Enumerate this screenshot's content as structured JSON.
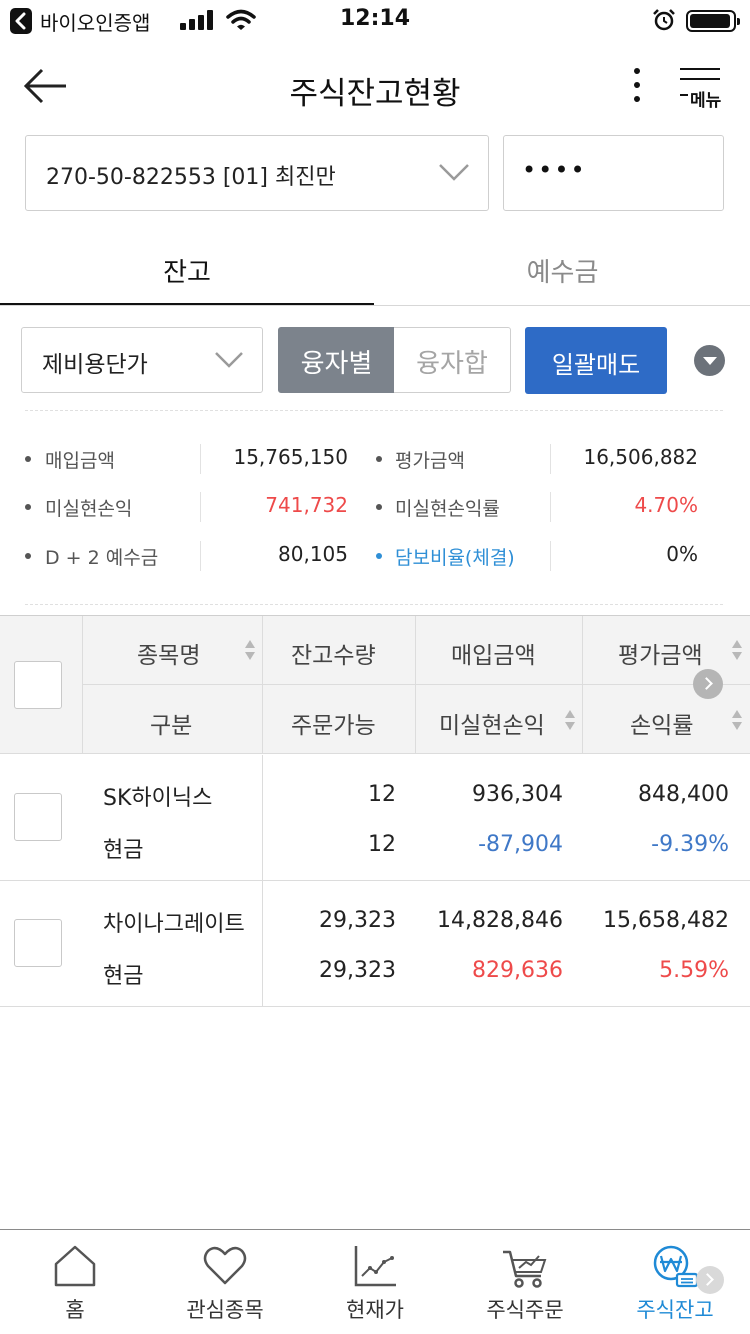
{
  "status_bar": {
    "back_app": "바이오인증앱",
    "time": "12:14"
  },
  "header": {
    "title": "주식잔고현황",
    "menu_label": "메뉴"
  },
  "account": {
    "selected": "270-50-822553  [01] 최진만",
    "password_value": "••••"
  },
  "tabs": [
    {
      "label": "잔고",
      "active": true
    },
    {
      "label": "예수금",
      "active": false
    }
  ],
  "filters": {
    "price_basis": "제비용단가",
    "segment": [
      "융자별",
      "융자합"
    ],
    "bulk_sell": "일괄매도"
  },
  "summary": [
    {
      "label": "매입금액",
      "value": "15,765,150",
      "label2": "평가금액",
      "value2": "16,506,882"
    },
    {
      "label": "미실현손익",
      "value": "741,732",
      "label2": "미실현손익률",
      "value2": "4.70%"
    },
    {
      "label": "D + 2 예수금",
      "value": "80,105",
      "label2": "담보비율(체결)",
      "value2": "0%"
    }
  ],
  "table": {
    "headers_top": [
      "종목명",
      "잔고수량",
      "매입금액",
      "평가금액"
    ],
    "headers_bottom": [
      "구분",
      "주문가능",
      "미실현손익",
      "손익률"
    ],
    "rows": [
      {
        "name": "SK하이닉스",
        "type": "현금",
        "qty": "12",
        "orderable": "12",
        "buy_amount": "936,304",
        "pnl": "-87,904",
        "eval_amount": "848,400",
        "rate": "-9.39%",
        "trend": "down"
      },
      {
        "name": "차이나그레이트",
        "type": "현금",
        "qty": "29,323",
        "orderable": "29,323",
        "buy_amount": "14,828,846",
        "pnl": "829,636",
        "eval_amount": "15,658,482",
        "rate": "5.59%",
        "trend": "up"
      }
    ]
  },
  "colors": {
    "accent_blue": "#2e6bc6",
    "positive_red": "#ee4a4a",
    "negative_blue": "#3f78c7",
    "link_blue": "#2f8fd6",
    "active_nav": "#1f8ad6"
  },
  "bottom_nav": [
    {
      "label": "홈",
      "icon": "home-icon"
    },
    {
      "label": "관심종목",
      "icon": "heart-icon"
    },
    {
      "label": "현재가",
      "icon": "line-chart-icon"
    },
    {
      "label": "주식주문",
      "icon": "cart-icon"
    },
    {
      "label": "주식잔고",
      "icon": "won-balance-icon",
      "active": true
    }
  ]
}
